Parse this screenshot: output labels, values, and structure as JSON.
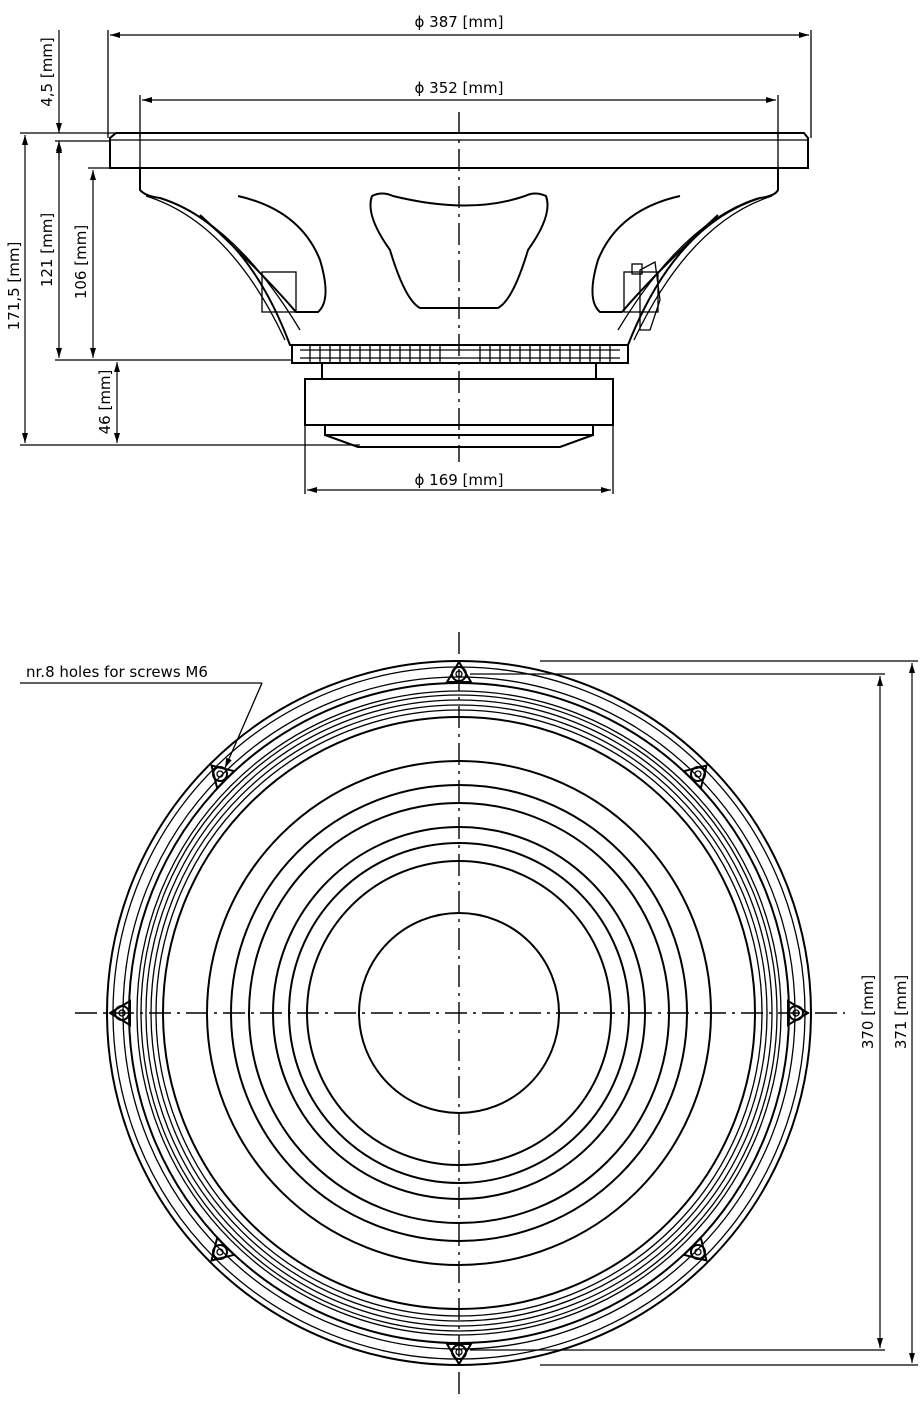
{
  "side_view": {
    "dim_outer_diameter": "ϕ  387  [mm]",
    "dim_cutout_diameter": "ϕ  352  [mm]",
    "dim_magnet_diameter": "ϕ  169  [mm]",
    "dim_flange_thickness": "4,5  [mm]",
    "dim_total_depth": "171,5  [mm]",
    "dim_mount_depth": "121  [mm]",
    "dim_basket_depth": "106  [mm]",
    "dim_magnet_depth": "46  [mm]"
  },
  "front_view": {
    "holes_note": "nr.8  holes  for  screws  M6",
    "dim_height_inner": "370  [mm]",
    "dim_height_outer": "371  [mm]"
  }
}
